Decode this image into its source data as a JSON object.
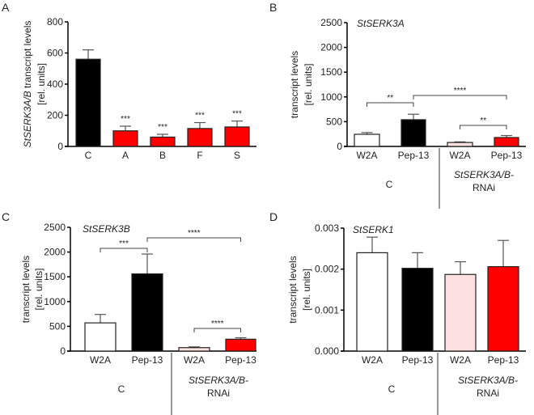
{
  "chart_data": [
    {
      "panel": "A",
      "type": "bar",
      "title": "",
      "ylabel_italic": "StSERK3A/B",
      "ylabel_rest": " transcript levels",
      "ylabel2": "[rel. units]",
      "ylim": [
        0,
        800
      ],
      "yticks": [
        "0",
        "200",
        "400",
        "600",
        "800"
      ],
      "ytick_values": [
        0,
        200,
        400,
        600,
        800
      ],
      "categories": [
        "C",
        "A",
        "B",
        "F",
        "S"
      ],
      "values": [
        560,
        100,
        60,
        115,
        125
      ],
      "errors": [
        60,
        30,
        18,
        38,
        38
      ],
      "colors": [
        "#000000",
        "#ff0000",
        "#ff0000",
        "#ff0000",
        "#ff0000"
      ],
      "stars": [
        "",
        "***",
        "***",
        "***",
        "***"
      ]
    },
    {
      "panel": "B",
      "type": "bar",
      "title": "StSERK3A",
      "ylabel": "transcript levels",
      "ylabel2": "[rel. units]",
      "ylim": [
        0,
        2500
      ],
      "yticks": [
        "0",
        "500",
        "1000",
        "1500",
        "2000",
        "2500"
      ],
      "ytick_values": [
        0,
        500,
        1000,
        1500,
        2000,
        2500
      ],
      "categories": [
        "W2A",
        "Pep-13",
        "W2A",
        "Pep-13"
      ],
      "values": [
        245,
        540,
        80,
        180
      ],
      "errors": [
        35,
        110,
        12,
        40
      ],
      "colors": [
        "#ffffff",
        "#000000",
        "#fde0e0",
        "#ff0000"
      ],
      "groups": [
        "C",
        "StSERK3A/B-",
        "RNAi"
      ],
      "significance": [
        {
          "from": 0,
          "to": 1,
          "label": "**"
        },
        {
          "from": 1,
          "to": 3,
          "label": "****"
        },
        {
          "from": 2,
          "to": 3,
          "label": "**"
        }
      ]
    },
    {
      "panel": "C",
      "type": "bar",
      "title": "StSERK3B",
      "ylabel": "transcript levels",
      "ylabel2": "[rel. units]",
      "ylim": [
        0,
        2500
      ],
      "yticks": [
        "0",
        "500",
        "1000",
        "1500",
        "2000",
        "2500"
      ],
      "ytick_values": [
        0,
        500,
        1000,
        1500,
        2000,
        2500
      ],
      "categories": [
        "W2A",
        "Pep-13",
        "W2A",
        "Pep-13"
      ],
      "values": [
        570,
        1560,
        70,
        240
      ],
      "errors": [
        170,
        400,
        15,
        30
      ],
      "colors": [
        "#ffffff",
        "#000000",
        "#fde0e0",
        "#ff0000"
      ],
      "groups": [
        "C",
        "StSERK3A/B-",
        "RNAi"
      ],
      "significance": [
        {
          "from": 0,
          "to": 1,
          "label": "***"
        },
        {
          "from": 1,
          "to": 3,
          "label": "****"
        },
        {
          "from": 2,
          "to": 3,
          "label": "****"
        }
      ]
    },
    {
      "panel": "D",
      "type": "bar",
      "title": "StSERK1",
      "ylabel": "transcript levels",
      "ylabel2": "[rel. units]",
      "ylim": [
        0,
        0.003
      ],
      "yticks": [
        "0.000",
        "0.001",
        "0.002",
        "0.003"
      ],
      "ytick_values": [
        0,
        0.001,
        0.002,
        0.003
      ],
      "categories": [
        "W2A",
        "Pep-13",
        "W2A",
        "Pep-13"
      ],
      "values": [
        0.0024,
        0.00202,
        0.00187,
        0.00206
      ],
      "errors": [
        0.00038,
        0.00038,
        0.00031,
        0.00064
      ],
      "colors": [
        "#ffffff",
        "#000000",
        "#fde0e0",
        "#ff0000"
      ],
      "groups": [
        "C",
        "StSERK3A/B-",
        "RNAi"
      ],
      "significance": []
    }
  ]
}
